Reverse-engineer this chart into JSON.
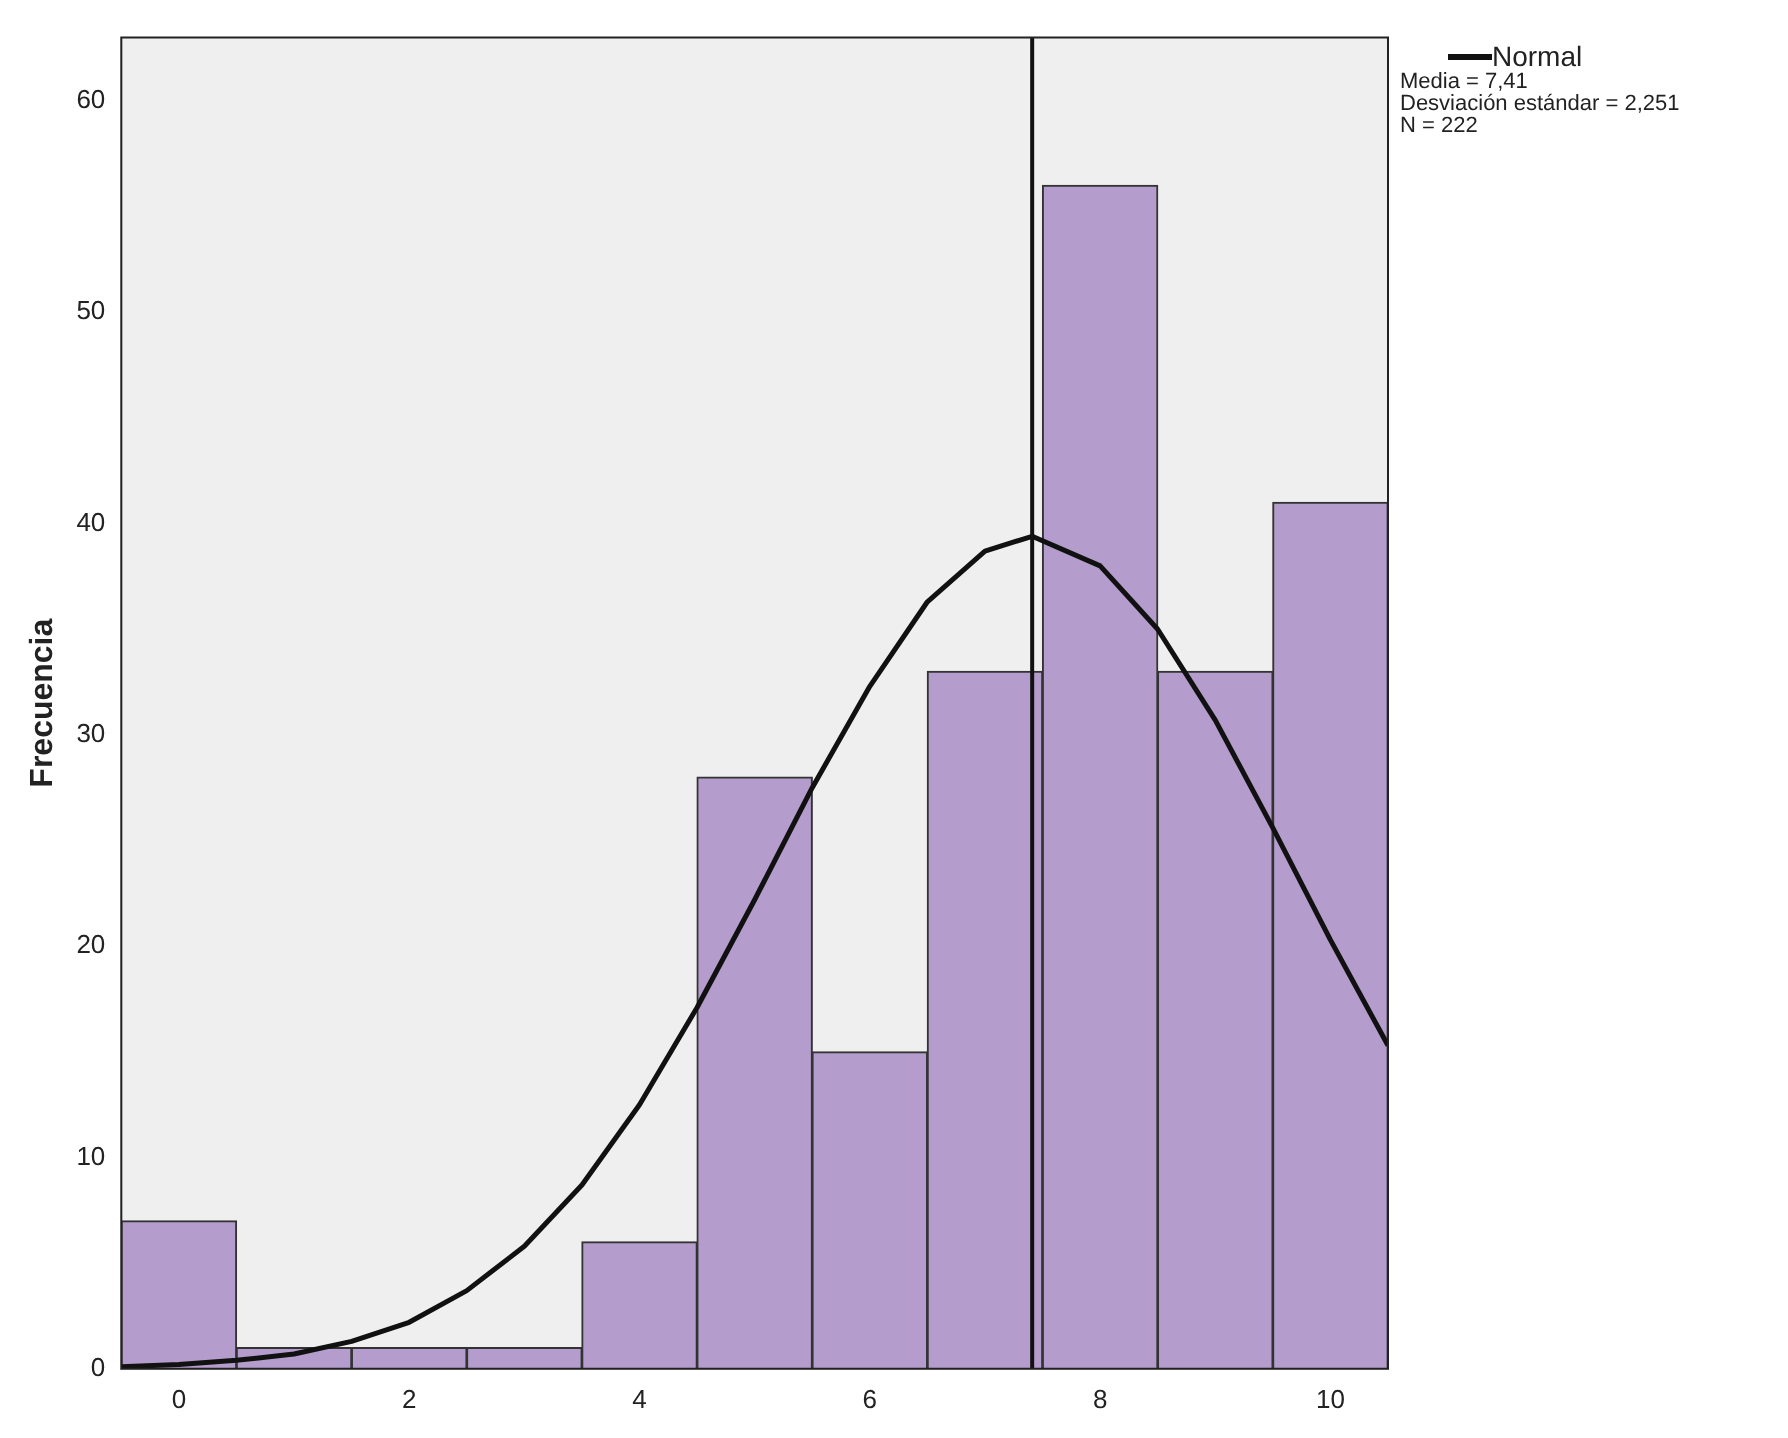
{
  "chart_data": {
    "type": "histogram",
    "ylabel": "Frecuencia",
    "bins": [
      -0.5,
      0.5,
      1.5,
      2.5,
      3.5,
      4.5,
      5.5,
      6.5,
      7.5,
      8.5,
      9.5,
      10.5
    ],
    "values": [
      7,
      1,
      1,
      1,
      6,
      28,
      15,
      33,
      56,
      33,
      41
    ],
    "color": "#b49ccc",
    "series": [
      {
        "type": "line",
        "name": "Normal",
        "color": "#111111",
        "x": [
          -0.5,
          0,
          0.5,
          1,
          1.5,
          2,
          2.5,
          3,
          3.5,
          4,
          4.5,
          5,
          5.5,
          6,
          6.5,
          7,
          7.41,
          8,
          8.5,
          9,
          9.5,
          10,
          10.5
        ],
        "values": [
          0.1,
          0.2,
          0.4,
          0.7,
          1.3,
          2.2,
          3.7,
          5.8,
          8.7,
          12.5,
          17.1,
          22.2,
          27.5,
          32.3,
          36.3,
          38.7,
          39.4,
          38.0,
          35.0,
          30.7,
          25.6,
          20.3,
          15.3
        ]
      }
    ],
    "ref_lines": [
      {
        "axis": "x",
        "value": 7.41,
        "color": "#111111"
      }
    ],
    "annotations": [
      "Media = 7,41",
      "Desviación estándar = 2,251",
      "N = 222"
    ],
    "xlim": [
      -0.5,
      10.5
    ],
    "xticks": [
      0,
      2,
      4,
      6,
      8,
      10
    ],
    "ylim": [
      0,
      63
    ],
    "yticks": [
      0,
      10,
      20,
      30,
      40,
      50,
      60
    ],
    "grid": false,
    "legend": "top right"
  }
}
